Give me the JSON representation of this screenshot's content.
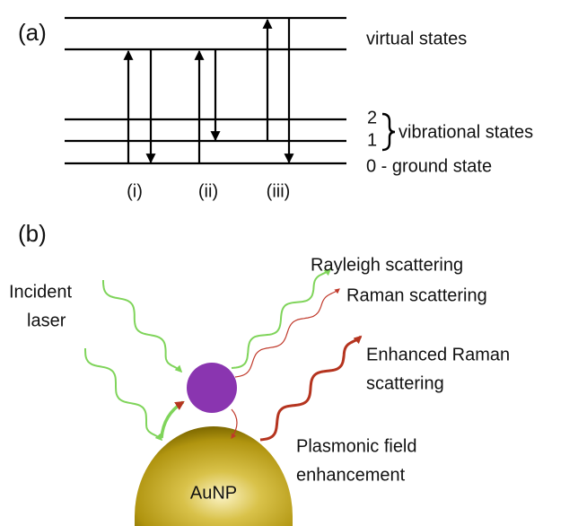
{
  "panel_a": {
    "label": "(a)",
    "levels": {
      "virtual": "virtual states",
      "vib2": "2",
      "vib1": "1",
      "vibrational": "vibrational states",
      "ground": "0 - ground state"
    },
    "transitions": [
      "(i)",
      "(ii)",
      "(iii)"
    ]
  },
  "panel_b": {
    "label": "(b)",
    "incident": [
      "Incident",
      "laser"
    ],
    "rayleigh": "Rayleigh scattering",
    "raman": "Raman scattering",
    "enhanced": [
      "Enhanced Raman",
      "scattering"
    ],
    "plasmonic": [
      "Plasmonic field",
      "enhancement"
    ],
    "particle": "AuNP"
  }
}
